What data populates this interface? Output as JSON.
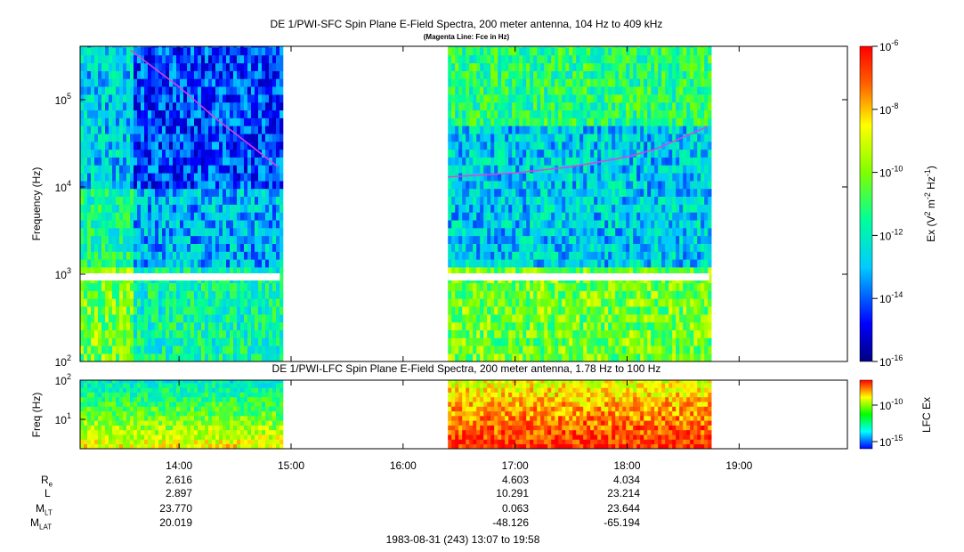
{
  "chart_data": [
    {
      "type": "heatmap",
      "title": "DE 1/PWI-SFC  Spin Plane E-Field Spectra, 200 meter antenna, 104 Hz to 409 kHz",
      "subtitle": "(Magenta Line: Fce in Hz)",
      "ylabel": "Frequency (Hz)",
      "yscale": "log",
      "ylim": [
        100,
        409000
      ],
      "yticks": [
        "10",
        "10",
        "10",
        "10"
      ],
      "ytick_exp": [
        "2",
        "3",
        "4",
        "5"
      ],
      "colorbar": {
        "label_pre": "Ex (V",
        "label_sup1": "2",
        "label_mid": " m",
        "label_sup2": "-2",
        "label_mid2": " Hz",
        "label_sup3": "-1",
        "label_end": ")",
        "ticks": [
          "10",
          "10",
          "10",
          "10",
          "10",
          "10"
        ],
        "tick_exp": [
          "-6",
          "-8",
          "-10",
          "-12",
          "-14",
          "-16"
        ],
        "range": [
          1e-16,
          1e-06
        ],
        "scale": "log",
        "colormap": "rainbow"
      },
      "data_segments": [
        {
          "start": "13:07",
          "end": "14:54"
        },
        {
          "start": "16:24",
          "end": "18:44"
        }
      ],
      "fce_line": {
        "color": "#e040e0",
        "segments": [
          {
            "x": [
              "13:34",
              "14:00",
              "14:20",
              "14:40",
              "14:53"
            ],
            "y": [
              370000,
              140000,
              60000,
              28000,
              17000
            ]
          },
          {
            "x": [
              "16:24",
              "17:00",
              "17:30",
              "18:00",
              "18:15",
              "18:43"
            ],
            "y": [
              13000,
              14500,
              17000,
              22000,
              27000,
              49000
            ]
          }
        ]
      }
    },
    {
      "type": "heatmap",
      "title": "DE 1/PWI-LFC  Spin Plane E-Field Spectra, 200 meter antenna, 1.78 Hz to 100 Hz",
      "ylabel": "Freq (Hz)",
      "yscale": "log",
      "ylim": [
        1.78,
        100
      ],
      "yticks": [
        "10",
        "10"
      ],
      "ytick_exp": [
        "2",
        "1"
      ],
      "colorbar": {
        "label": "LFC Ex",
        "ticks": [
          "10",
          "10"
        ],
        "tick_exp": [
          "-10",
          "-15"
        ],
        "scale": "log",
        "colormap": "rainbow"
      },
      "data_segments": [
        {
          "start": "13:07",
          "end": "14:54"
        },
        {
          "start": "16:24",
          "end": "18:44"
        }
      ]
    }
  ],
  "time_axis": {
    "range": [
      "13:07",
      "19:58"
    ],
    "ticks": [
      "14:00",
      "15:00",
      "16:00",
      "17:00",
      "18:00",
      "19:00"
    ]
  },
  "ephemeris": {
    "labels": [
      {
        "main": "R",
        "sub": "e"
      },
      {
        "main": "L",
        "sub": ""
      },
      {
        "main": "M",
        "sub": "LT"
      },
      {
        "main": "M",
        "sub": "LAT"
      }
    ],
    "columns": [
      {
        "time": "14:00",
        "values": [
          "2.616",
          "2.897",
          "23.770",
          "20.019"
        ]
      },
      {
        "time": "17:00",
        "values": [
          "4.603",
          "10.291",
          "0.063",
          "-48.126"
        ]
      },
      {
        "time": "18:00",
        "values": [
          "4.034",
          "23.214",
          "23.644",
          "-65.194"
        ]
      }
    ]
  },
  "footer": "1983-08-31 (243) 13:07 to 19:58"
}
